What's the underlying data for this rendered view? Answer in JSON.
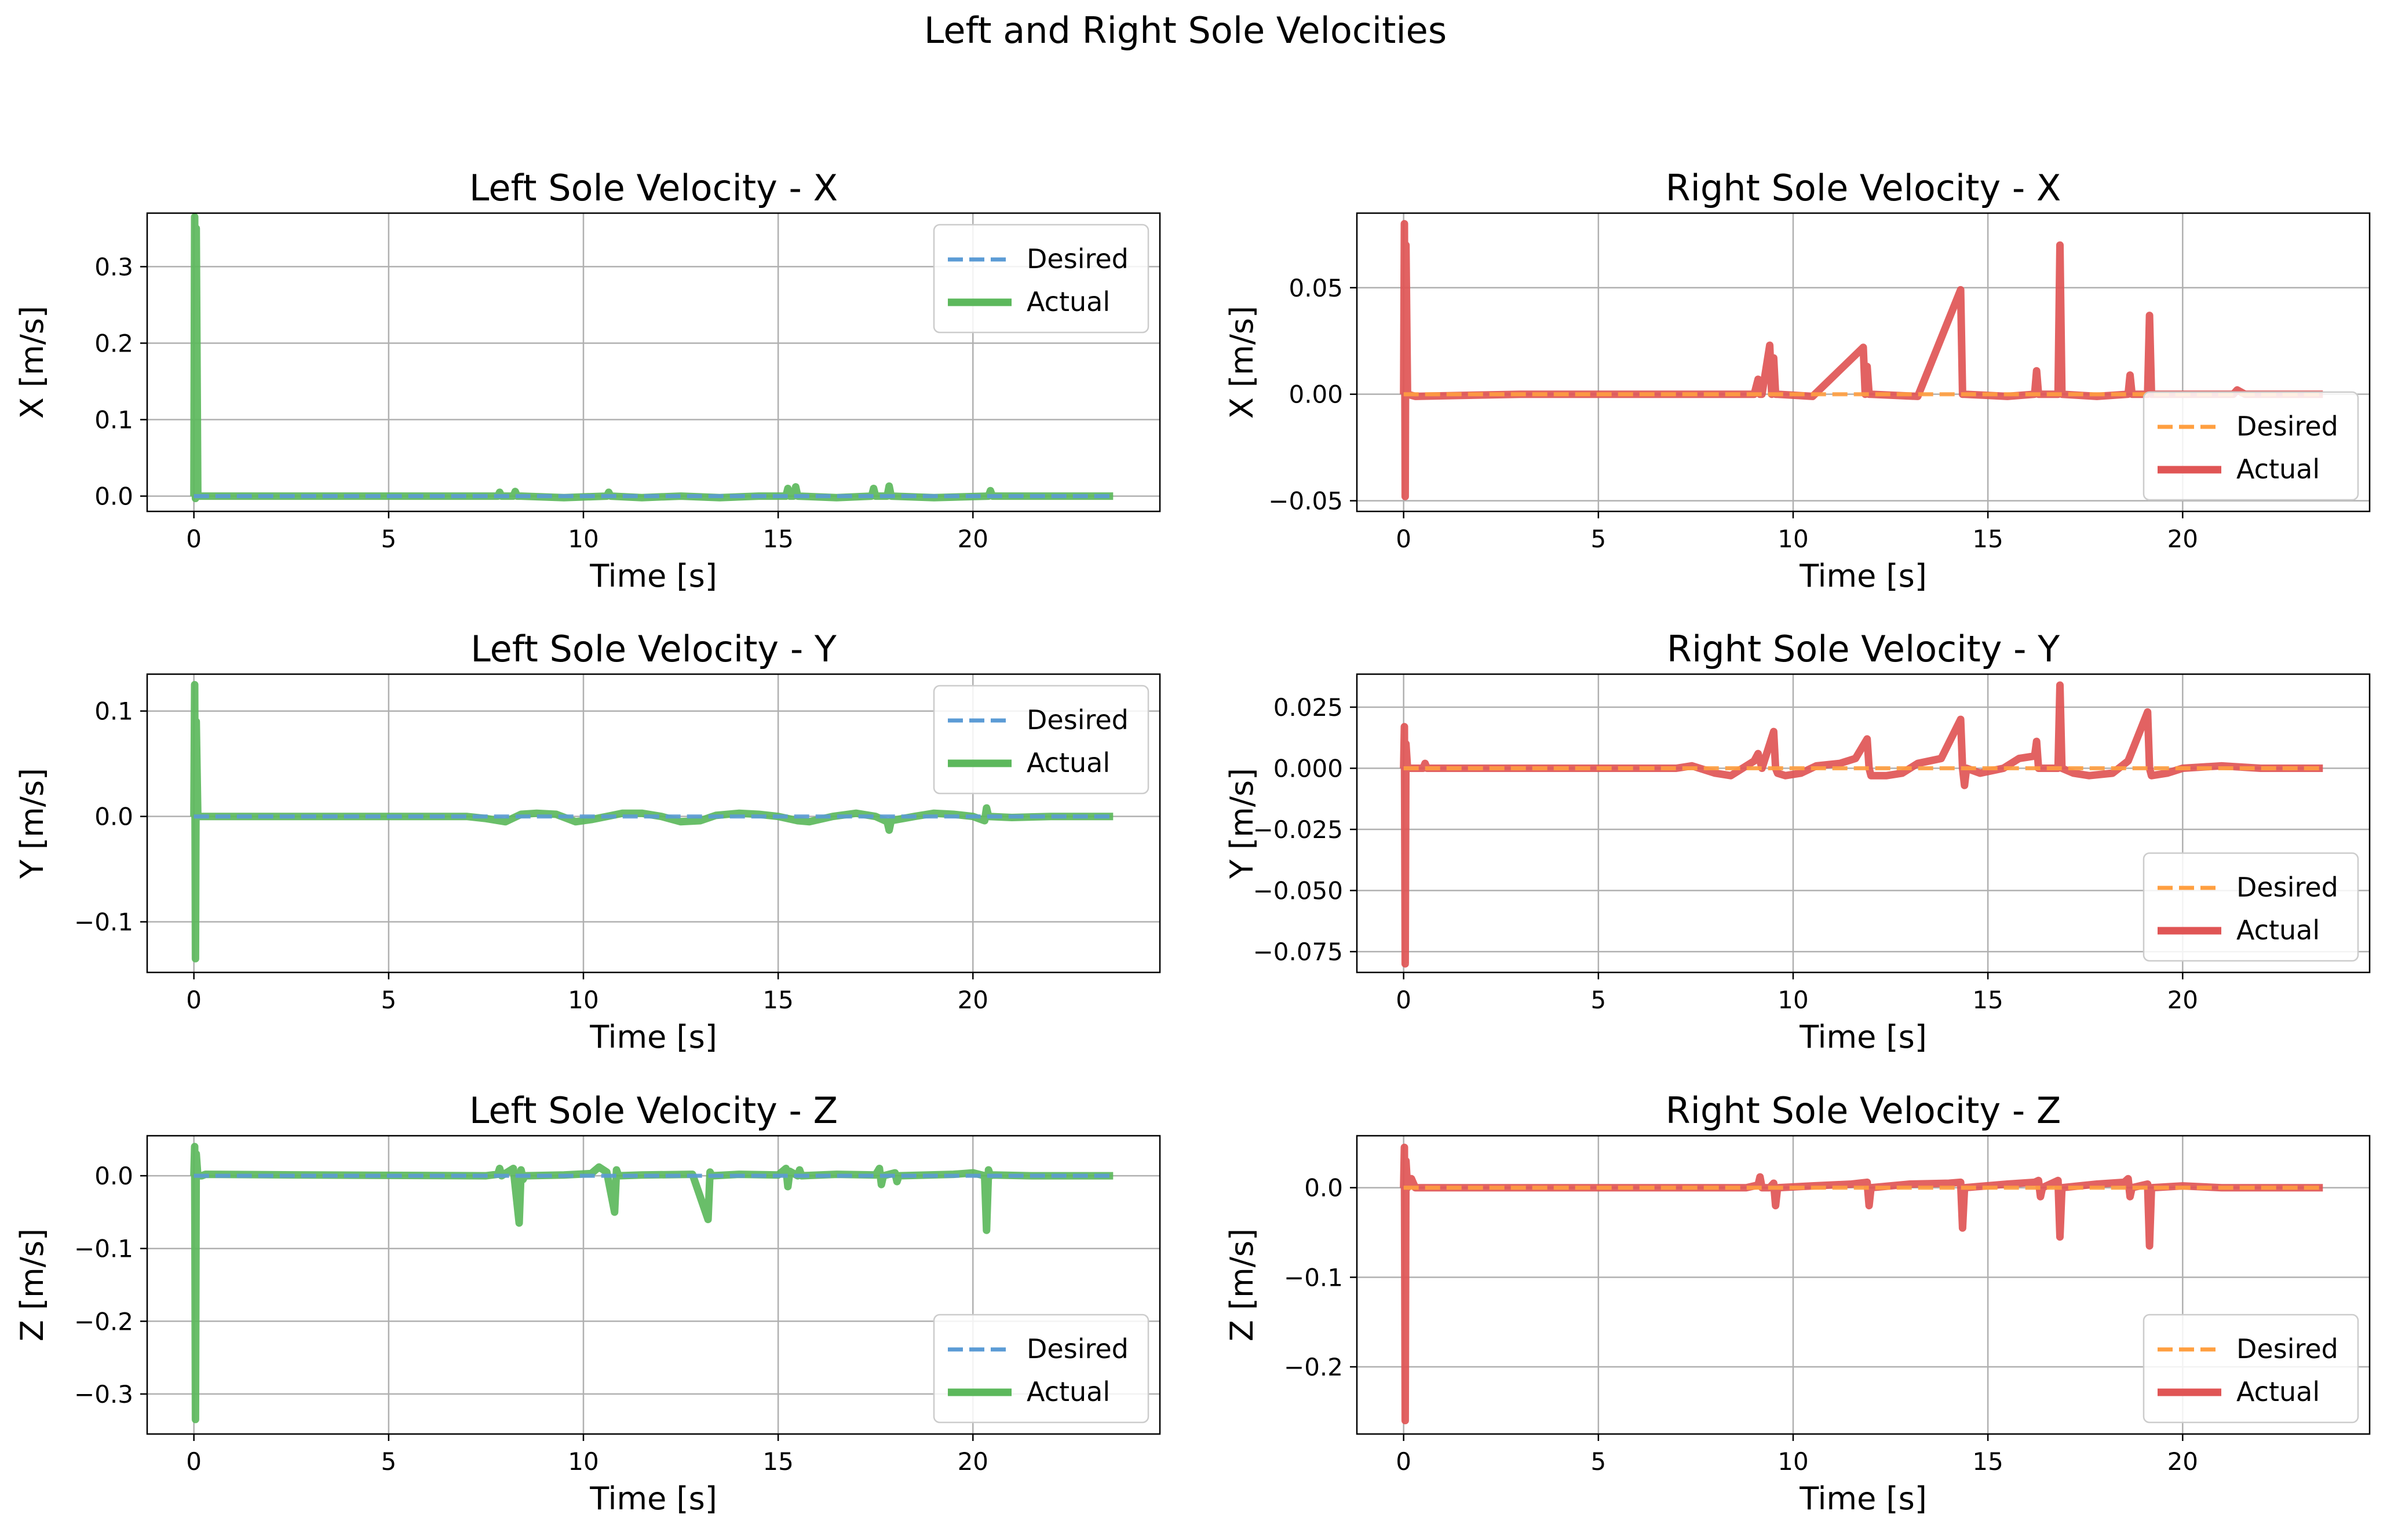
{
  "figure": {
    "suptitle": "Left and Right Sole Velocities"
  },
  "colors": {
    "desired_left": "#5b9bd5",
    "actual_left": "#5cb85c",
    "desired_right": "#ff9f40",
    "actual_right": "#e05555",
    "grid": "#b0b0b0"
  },
  "chart_data": [
    {
      "id": "left_x",
      "type": "line",
      "side": "left",
      "title": "Left Sole Velocity - X",
      "xlabel": "Time [s]",
      "ylabel": "X [m/s]",
      "xlim": [
        -1.2,
        24.8
      ],
      "ylim": [
        -0.02,
        0.37
      ],
      "xticks": [
        0,
        5,
        10,
        15,
        20
      ],
      "yticks": [
        0.0,
        0.1,
        0.2,
        0.3
      ],
      "ytick_labels": [
        "0.0",
        "0.1",
        "0.2",
        "0.3"
      ],
      "grid": true,
      "legend": "upper right",
      "series": [
        {
          "name": "Desired",
          "style": "dashed",
          "x": [
            0,
            23.6
          ],
          "y": [
            0,
            0
          ]
        },
        {
          "name": "Actual",
          "style": "solid",
          "x": [
            0,
            0.02,
            0.04,
            0.06,
            0.1,
            0.3,
            2,
            4,
            6,
            7.8,
            7.85,
            7.9,
            8.2,
            8.25,
            8.3,
            8.4,
            9.5,
            10.6,
            10.65,
            10.7,
            11.5,
            12.5,
            13.5,
            14.5,
            15.2,
            15.25,
            15.3,
            15.4,
            15.45,
            15.5,
            16.5,
            17.4,
            17.45,
            17.5,
            17.8,
            17.85,
            17.9,
            19.0,
            20.4,
            20.45,
            20.5,
            21.5,
            22.5,
            23.6
          ],
          "y": [
            0,
            0.365,
            -0.003,
            0.35,
            0.0,
            0.0,
            0.0,
            0.0,
            0.0,
            0.0,
            0.005,
            0.0,
            0.0,
            0.006,
            0.0,
            0.0,
            -0.002,
            0.0,
            0.005,
            0.0,
            -0.002,
            0.0,
            -0.002,
            0.0,
            0.0,
            0.01,
            0.0,
            0.0,
            0.012,
            0.0,
            -0.002,
            0.0,
            0.01,
            0.0,
            0.0,
            0.013,
            0.0,
            -0.002,
            0.0,
            0.007,
            0.0,
            0.0,
            0.0,
            0.0
          ]
        }
      ]
    },
    {
      "id": "right_x",
      "type": "line",
      "side": "right",
      "title": "Right Sole Velocity - X",
      "xlabel": "Time [s]",
      "ylabel": "X [m/s]",
      "xlim": [
        -1.2,
        24.8
      ],
      "ylim": [
        -0.055,
        0.085
      ],
      "xticks": [
        0,
        5,
        10,
        15,
        20
      ],
      "yticks": [
        -0.05,
        0.0,
        0.05
      ],
      "ytick_labels": [
        "−0.05",
        "0.00",
        "0.05"
      ],
      "grid": true,
      "legend": "lower right",
      "series": [
        {
          "name": "Desired",
          "style": "dashed",
          "x": [
            0,
            23.6
          ],
          "y": [
            0,
            0
          ]
        },
        {
          "name": "Actual",
          "style": "solid",
          "x": [
            0,
            0.02,
            0.04,
            0.06,
            0.1,
            0.3,
            3,
            6,
            9.0,
            9.1,
            9.15,
            9.2,
            9.4,
            9.45,
            9.5,
            9.55,
            9.6,
            10.5,
            11.8,
            11.85,
            11.9,
            11.95,
            12.0,
            13.2,
            14.3,
            14.35,
            14.4,
            15.5,
            16.2,
            16.25,
            16.3,
            16.8,
            16.85,
            16.9,
            17.8,
            18.6,
            18.65,
            18.7,
            19.1,
            19.15,
            19.2,
            21.3,
            21.4,
            21.6,
            23.6
          ],
          "y": [
            0,
            0.08,
            -0.048,
            0.07,
            0.0,
            -0.001,
            0.0,
            0.0,
            0.0,
            0.007,
            0.0,
            0.0,
            0.023,
            0.0,
            0.017,
            0.0,
            0.0,
            -0.001,
            0.022,
            0.0,
            0.013,
            0.0,
            0.0,
            -0.001,
            0.049,
            0.0,
            0.0,
            -0.001,
            0.0,
            0.011,
            0.0,
            0.0,
            0.07,
            0.0,
            -0.001,
            0.0,
            0.009,
            0.0,
            0.0,
            0.037,
            0.0,
            0.0,
            0.002,
            0.0,
            0.0
          ]
        }
      ]
    },
    {
      "id": "left_y",
      "type": "line",
      "side": "left",
      "title": "Left Sole Velocity - Y",
      "xlabel": "Time [s]",
      "ylabel": "Y [m/s]",
      "xlim": [
        -1.2,
        24.8
      ],
      "ylim": [
        -0.148,
        0.135
      ],
      "xticks": [
        0,
        5,
        10,
        15,
        20
      ],
      "yticks": [
        -0.1,
        0.0,
        0.1
      ],
      "ytick_labels": [
        "−0.1",
        "0.0",
        "0.1"
      ],
      "grid": true,
      "legend": "upper right",
      "series": [
        {
          "name": "Desired",
          "style": "dashed",
          "x": [
            0,
            23.6
          ],
          "y": [
            0,
            0
          ]
        },
        {
          "name": "Actual",
          "style": "solid",
          "x": [
            0,
            0.02,
            0.04,
            0.06,
            0.1,
            0.3,
            3,
            7,
            7.5,
            8.0,
            8.4,
            8.8,
            9.3,
            9.8,
            10.2,
            10.6,
            11.0,
            11.5,
            12.0,
            12.5,
            13.0,
            13.4,
            14.0,
            14.5,
            15.0,
            15.5,
            15.8,
            16.4,
            17.0,
            17.5,
            17.8,
            17.85,
            17.9,
            18.5,
            19.0,
            19.5,
            20.0,
            20.3,
            20.35,
            20.4,
            21.0,
            22.0,
            23.6
          ],
          "y": [
            0,
            0.125,
            -0.135,
            0.09,
            0.0,
            0.0,
            0.0,
            0.0,
            -0.002,
            -0.005,
            0.002,
            0.003,
            0.002,
            -0.005,
            -0.003,
            0.0,
            0.003,
            0.003,
            0.0,
            -0.005,
            -0.004,
            0.001,
            0.003,
            0.002,
            0.0,
            -0.004,
            -0.005,
            0.0,
            0.003,
            0.0,
            -0.005,
            -0.013,
            -0.004,
            0.0,
            0.003,
            0.002,
            0.0,
            -0.004,
            0.008,
            0.0,
            -0.001,
            0.0,
            0.0
          ]
        }
      ]
    },
    {
      "id": "right_y",
      "type": "line",
      "side": "right",
      "title": "Right Sole Velocity - Y",
      "xlabel": "Time [s]",
      "ylabel": "Y [m/s]",
      "xlim": [
        -1.2,
        24.8
      ],
      "ylim": [
        -0.0835,
        0.0385
      ],
      "xticks": [
        0,
        5,
        10,
        15,
        20
      ],
      "yticks": [
        -0.075,
        -0.05,
        -0.025,
        0.0,
        0.025
      ],
      "ytick_labels": [
        "−0.075",
        "−0.050",
        "−0.025",
        "0.000",
        "0.025"
      ],
      "grid": true,
      "legend": "lower right",
      "series": [
        {
          "name": "Desired",
          "style": "dashed",
          "x": [
            0,
            23.6
          ],
          "y": [
            0,
            0
          ]
        },
        {
          "name": "Actual",
          "style": "solid",
          "x": [
            0,
            0.02,
            0.04,
            0.06,
            0.1,
            0.3,
            0.5,
            0.55,
            0.6,
            3,
            7,
            7.4,
            8.0,
            8.4,
            9.0,
            9.1,
            9.2,
            9.5,
            9.55,
            9.6,
            9.8,
            10.2,
            10.6,
            11.2,
            11.6,
            11.9,
            11.95,
            12.0,
            12.4,
            12.8,
            13.2,
            13.8,
            14.3,
            14.35,
            14.4,
            14.45,
            14.8,
            15.4,
            15.8,
            16.2,
            16.25,
            16.3,
            16.8,
            16.85,
            16.9,
            17.2,
            17.6,
            18.2,
            18.6,
            19.1,
            19.15,
            19.2,
            19.6,
            20.0,
            21.0,
            22.0,
            23.6
          ],
          "y": [
            0,
            0.017,
            -0.08,
            0.01,
            0.0,
            0.0,
            0.0,
            0.002,
            0.0,
            0.0,
            0.0,
            0.001,
            -0.002,
            -0.003,
            0.003,
            0.006,
            0.0,
            0.015,
            0.0,
            -0.002,
            -0.003,
            -0.002,
            0.001,
            0.002,
            0.004,
            0.012,
            0.0,
            -0.003,
            -0.003,
            -0.002,
            0.002,
            0.004,
            0.02,
            0.0,
            -0.007,
            0.0,
            -0.002,
            0.0,
            0.004,
            0.005,
            0.011,
            0.0,
            0.0,
            0.034,
            0.0,
            -0.002,
            -0.003,
            -0.002,
            0.003,
            0.023,
            0.0,
            -0.003,
            -0.002,
            0.0,
            0.001,
            0.0,
            0.0
          ]
        }
      ]
    },
    {
      "id": "left_z",
      "type": "line",
      "side": "left",
      "title": "Left Sole Velocity - Z",
      "xlabel": "Time [s]",
      "ylabel": "Z [m/s]",
      "xlim": [
        -1.2,
        24.8
      ],
      "ylim": [
        -0.355,
        0.055
      ],
      "xticks": [
        0,
        5,
        10,
        15,
        20
      ],
      "yticks": [
        -0.3,
        -0.2,
        -0.1,
        0.0
      ],
      "ytick_labels": [
        "−0.3",
        "−0.2",
        "−0.1",
        "0.0"
      ],
      "grid": true,
      "legend": "lower right",
      "series": [
        {
          "name": "Desired",
          "style": "dashed",
          "x": [
            0,
            23.6
          ],
          "y": [
            0,
            0
          ]
        },
        {
          "name": "Actual",
          "style": "solid",
          "x": [
            0,
            0.02,
            0.04,
            0.06,
            0.1,
            0.2,
            0.3,
            3,
            7.5,
            7.8,
            7.85,
            7.9,
            8.2,
            8.35,
            8.4,
            8.45,
            8.5,
            9.5,
            10.2,
            10.4,
            10.6,
            10.8,
            10.85,
            10.9,
            11.5,
            12.8,
            13.2,
            13.25,
            13.3,
            14.0,
            15.0,
            15.2,
            15.25,
            15.3,
            15.5,
            15.55,
            15.6,
            16.5,
            17.5,
            17.6,
            17.65,
            17.7,
            18.0,
            18.05,
            18.1,
            19.5,
            20.0,
            20.3,
            20.35,
            20.4,
            20.45,
            20.5,
            21.5,
            23.6
          ],
          "y": [
            0,
            0.04,
            -0.335,
            0.03,
            0.0,
            0.0,
            0.002,
            0.001,
            0.0,
            0.002,
            0.01,
            0.0,
            0.01,
            -0.065,
            0.008,
            -0.005,
            0.0,
            0.001,
            0.003,
            0.012,
            0.005,
            -0.05,
            0.008,
            0.0,
            0.001,
            0.002,
            -0.06,
            0.005,
            0.0,
            0.002,
            0.001,
            0.01,
            -0.015,
            0.006,
            0.0,
            0.008,
            0.0,
            0.002,
            0.001,
            0.01,
            -0.012,
            0.0,
            0.004,
            -0.008,
            0.0,
            0.002,
            0.004,
            0.0,
            -0.075,
            0.008,
            0.0,
            0.001,
            0.0,
            0.0
          ]
        }
      ]
    },
    {
      "id": "right_z",
      "type": "line",
      "side": "right",
      "title": "Right Sole Velocity - Z",
      "xlabel": "Time [s]",
      "ylabel": "Z [m/s]",
      "xlim": [
        -1.2,
        24.8
      ],
      "ylim": [
        -0.275,
        0.058
      ],
      "xticks": [
        0,
        5,
        10,
        15,
        20
      ],
      "yticks": [
        -0.2,
        -0.1,
        0.0
      ],
      "ytick_labels": [
        "−0.2",
        "−0.1",
        "0.0"
      ],
      "grid": true,
      "legend": "lower right",
      "series": [
        {
          "name": "Desired",
          "style": "dashed",
          "x": [
            0,
            23.6
          ],
          "y": [
            0,
            0
          ]
        },
        {
          "name": "Actual",
          "style": "solid",
          "x": [
            0,
            0.02,
            0.04,
            0.06,
            0.1,
            0.2,
            0.3,
            3,
            8.8,
            9.1,
            9.15,
            9.2,
            9.4,
            9.5,
            9.55,
            9.6,
            10.5,
            11.5,
            11.9,
            11.95,
            12.0,
            13.0,
            14.0,
            14.3,
            14.35,
            14.4,
            15.5,
            16.2,
            16.3,
            16.35,
            16.4,
            16.8,
            16.85,
            16.9,
            17.8,
            18.5,
            18.6,
            18.65,
            18.7,
            19.1,
            19.15,
            19.2,
            20.0,
            21.0,
            23.6
          ],
          "y": [
            0,
            0.045,
            -0.26,
            0.03,
            0.0,
            0.01,
            0.0,
            0.0,
            0.0,
            0.003,
            0.012,
            0.0,
            0.0,
            0.005,
            -0.02,
            0.0,
            0.002,
            0.004,
            0.006,
            -0.02,
            0.0,
            0.004,
            0.005,
            0.006,
            -0.045,
            0.0,
            0.004,
            0.006,
            0.008,
            -0.01,
            0.0,
            0.008,
            -0.055,
            0.0,
            0.004,
            0.006,
            0.01,
            -0.01,
            0.0,
            0.004,
            -0.065,
            0.0,
            0.002,
            0.0,
            0.0
          ]
        }
      ]
    }
  ]
}
